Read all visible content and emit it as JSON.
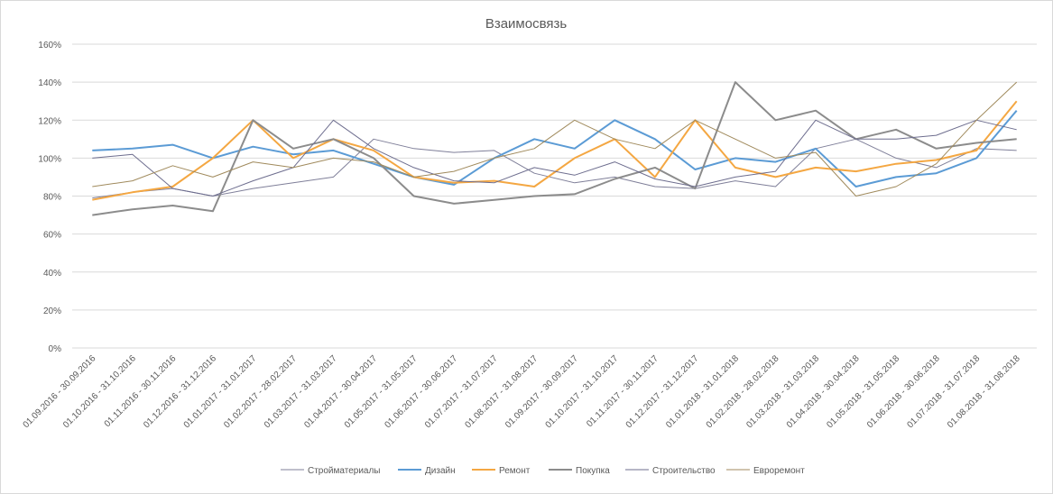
{
  "chart_data": {
    "type": "line",
    "title": "Взаимосвязь",
    "xlabel": "",
    "ylabel": "",
    "ylim": [
      0,
      160
    ],
    "y_ticks": [
      "0%",
      "20%",
      "40%",
      "60%",
      "80%",
      "100%",
      "120%",
      "140%",
      "160%"
    ],
    "y_tick_values": [
      0,
      20,
      40,
      60,
      80,
      100,
      120,
      140,
      160
    ],
    "grid": true,
    "legend_position": "bottom",
    "categories": [
      "01.09.2016 - 30.09.2016",
      "01.10.2016 - 31.10.2016",
      "01.11.2016 - 30.11.2016",
      "01.12.2016 - 31.12.2016",
      "01.01.2017 - 31.01.2017",
      "01.02.2017 - 28.02.2017",
      "01.03.2017 - 31.03.2017",
      "01.04.2017 - 30.04.2017",
      "01.05.2017 - 31.05.2017",
      "01.06.2017 - 30.06.2017",
      "01.07.2017 - 31.07.2017",
      "01.08.2017 - 31.08.2017",
      "01.09.2017 - 30.09.2017",
      "01.10.2017 - 31.10.2017",
      "01.11.2017 - 30.11.2017",
      "01.12.2017 - 31.12.2017",
      "01.01.2018 - 31.01.2018",
      "01.02.2018 - 28.02.2018",
      "01.03.2018 - 31.03.2018",
      "01.04.2018 - 30.04.2018",
      "01.05.2018 - 31.05.2018",
      "01.06.2018 - 30.06.2018",
      "01.07.2018 - 31.07.2018",
      "01.08.2018 - 31.08.2018"
    ],
    "series": [
      {
        "name": "Стройматериалы",
        "color": "#7f7f99",
        "width": 1,
        "values": [
          79,
          82,
          84,
          80,
          84,
          87,
          90,
          110,
          105,
          103,
          104,
          92,
          87,
          90,
          85,
          84,
          88,
          85,
          105,
          110,
          100,
          95,
          105,
          104
        ]
      },
      {
        "name": "Дизайн",
        "color": "#5b9bd5",
        "width": 2,
        "values": [
          104,
          105,
          107,
          100,
          106,
          102,
          104,
          97,
          90,
          86,
          100,
          110,
          105,
          120,
          110,
          94,
          100,
          98,
          105,
          85,
          90,
          92,
          100,
          125
        ]
      },
      {
        "name": "Ремонт",
        "color": "#f4a742",
        "width": 2,
        "values": [
          78,
          82,
          85,
          100,
          120,
          100,
          110,
          104,
          90,
          87,
          88,
          85,
          100,
          110,
          90,
          120,
          95,
          90,
          95,
          93,
          97,
          99,
          104,
          130
        ]
      },
      {
        "name": "Покупка",
        "color": "#8c8c8c",
        "width": 2,
        "values": [
          70,
          73,
          75,
          72,
          120,
          105,
          110,
          100,
          80,
          76,
          78,
          80,
          81,
          89,
          95,
          84,
          140,
          120,
          125,
          110,
          115,
          105,
          108,
          110
        ]
      },
      {
        "name": "Строительство",
        "color": "#6d6d8e",
        "width": 1,
        "values": [
          100,
          102,
          84,
          80,
          88,
          95,
          120,
          105,
          95,
          88,
          87,
          95,
          91,
          98,
          89,
          85,
          90,
          93,
          120,
          110,
          110,
          112,
          120,
          115
        ]
      },
      {
        "name": "Евроремонт",
        "color": "#a08a5c",
        "width": 1,
        "values": [
          85,
          88,
          96,
          90,
          98,
          95,
          100,
          98,
          90,
          93,
          100,
          105,
          120,
          110,
          105,
          120,
          110,
          100,
          103,
          80,
          85,
          97,
          120,
          140
        ]
      }
    ]
  }
}
